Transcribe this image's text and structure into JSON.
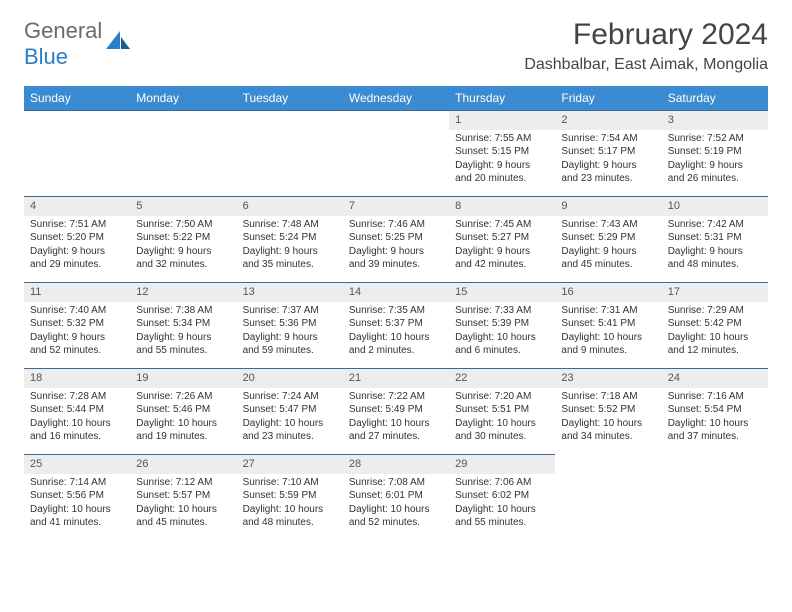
{
  "brand": {
    "word1": "General",
    "word2": "Blue"
  },
  "title": "February 2024",
  "location": "Dashbalbar, East Aimak, Mongolia",
  "colors": {
    "header_bg": "#3a8bd1",
    "header_text": "#ffffff",
    "cell_border": "#3a6a9a",
    "daynum_bg": "#ededed",
    "logo_gray": "#6b6b6b",
    "logo_blue": "#2a7ec5"
  },
  "typography": {
    "title_fontsize": 30,
    "location_fontsize": 16,
    "weekday_fontsize": 12,
    "cell_fontsize": 10
  },
  "weekdays": [
    "Sunday",
    "Monday",
    "Tuesday",
    "Wednesday",
    "Thursday",
    "Friday",
    "Saturday"
  ],
  "first_weekday_index": 4,
  "days": [
    {
      "n": "1",
      "sunrise": "7:55 AM",
      "sunset": "5:15 PM",
      "daylight": "9 hours and 20 minutes."
    },
    {
      "n": "2",
      "sunrise": "7:54 AM",
      "sunset": "5:17 PM",
      "daylight": "9 hours and 23 minutes."
    },
    {
      "n": "3",
      "sunrise": "7:52 AM",
      "sunset": "5:19 PM",
      "daylight": "9 hours and 26 minutes."
    },
    {
      "n": "4",
      "sunrise": "7:51 AM",
      "sunset": "5:20 PM",
      "daylight": "9 hours and 29 minutes."
    },
    {
      "n": "5",
      "sunrise": "7:50 AM",
      "sunset": "5:22 PM",
      "daylight": "9 hours and 32 minutes."
    },
    {
      "n": "6",
      "sunrise": "7:48 AM",
      "sunset": "5:24 PM",
      "daylight": "9 hours and 35 minutes."
    },
    {
      "n": "7",
      "sunrise": "7:46 AM",
      "sunset": "5:25 PM",
      "daylight": "9 hours and 39 minutes."
    },
    {
      "n": "8",
      "sunrise": "7:45 AM",
      "sunset": "5:27 PM",
      "daylight": "9 hours and 42 minutes."
    },
    {
      "n": "9",
      "sunrise": "7:43 AM",
      "sunset": "5:29 PM",
      "daylight": "9 hours and 45 minutes."
    },
    {
      "n": "10",
      "sunrise": "7:42 AM",
      "sunset": "5:31 PM",
      "daylight": "9 hours and 48 minutes."
    },
    {
      "n": "11",
      "sunrise": "7:40 AM",
      "sunset": "5:32 PM",
      "daylight": "9 hours and 52 minutes."
    },
    {
      "n": "12",
      "sunrise": "7:38 AM",
      "sunset": "5:34 PM",
      "daylight": "9 hours and 55 minutes."
    },
    {
      "n": "13",
      "sunrise": "7:37 AM",
      "sunset": "5:36 PM",
      "daylight": "9 hours and 59 minutes."
    },
    {
      "n": "14",
      "sunrise": "7:35 AM",
      "sunset": "5:37 PM",
      "daylight": "10 hours and 2 minutes."
    },
    {
      "n": "15",
      "sunrise": "7:33 AM",
      "sunset": "5:39 PM",
      "daylight": "10 hours and 6 minutes."
    },
    {
      "n": "16",
      "sunrise": "7:31 AM",
      "sunset": "5:41 PM",
      "daylight": "10 hours and 9 minutes."
    },
    {
      "n": "17",
      "sunrise": "7:29 AM",
      "sunset": "5:42 PM",
      "daylight": "10 hours and 12 minutes."
    },
    {
      "n": "18",
      "sunrise": "7:28 AM",
      "sunset": "5:44 PM",
      "daylight": "10 hours and 16 minutes."
    },
    {
      "n": "19",
      "sunrise": "7:26 AM",
      "sunset": "5:46 PM",
      "daylight": "10 hours and 19 minutes."
    },
    {
      "n": "20",
      "sunrise": "7:24 AM",
      "sunset": "5:47 PM",
      "daylight": "10 hours and 23 minutes."
    },
    {
      "n": "21",
      "sunrise": "7:22 AM",
      "sunset": "5:49 PM",
      "daylight": "10 hours and 27 minutes."
    },
    {
      "n": "22",
      "sunrise": "7:20 AM",
      "sunset": "5:51 PM",
      "daylight": "10 hours and 30 minutes."
    },
    {
      "n": "23",
      "sunrise": "7:18 AM",
      "sunset": "5:52 PM",
      "daylight": "10 hours and 34 minutes."
    },
    {
      "n": "24",
      "sunrise": "7:16 AM",
      "sunset": "5:54 PM",
      "daylight": "10 hours and 37 minutes."
    },
    {
      "n": "25",
      "sunrise": "7:14 AM",
      "sunset": "5:56 PM",
      "daylight": "10 hours and 41 minutes."
    },
    {
      "n": "26",
      "sunrise": "7:12 AM",
      "sunset": "5:57 PM",
      "daylight": "10 hours and 45 minutes."
    },
    {
      "n": "27",
      "sunrise": "7:10 AM",
      "sunset": "5:59 PM",
      "daylight": "10 hours and 48 minutes."
    },
    {
      "n": "28",
      "sunrise": "7:08 AM",
      "sunset": "6:01 PM",
      "daylight": "10 hours and 52 minutes."
    },
    {
      "n": "29",
      "sunrise": "7:06 AM",
      "sunset": "6:02 PM",
      "daylight": "10 hours and 55 minutes."
    }
  ],
  "labels": {
    "sunrise": "Sunrise: ",
    "sunset": "Sunset: ",
    "daylight": "Daylight: "
  }
}
